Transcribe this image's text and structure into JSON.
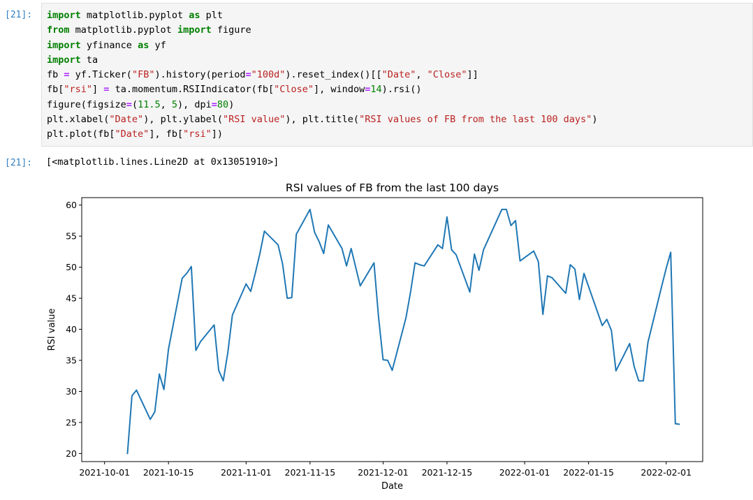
{
  "cells": [
    {
      "input_prompt": "[21]:",
      "output_prompt": "[21]:",
      "output_text": "[<matplotlib.lines.Line2D at 0x13051910>]",
      "code_lines": [
        [
          [
            "kw",
            "import"
          ],
          [
            "t",
            " matplotlib.pyplot "
          ],
          [
            "kw",
            "as"
          ],
          [
            "t",
            " plt"
          ]
        ],
        [
          [
            "kw",
            "from"
          ],
          [
            "t",
            " matplotlib.pyplot "
          ],
          [
            "kw",
            "import"
          ],
          [
            "t",
            " figure"
          ]
        ],
        [
          [
            "kw",
            "import"
          ],
          [
            "t",
            " yfinance "
          ],
          [
            "kw",
            "as"
          ],
          [
            "t",
            " yf"
          ]
        ],
        [
          [
            "kw",
            "import"
          ],
          [
            "t",
            " ta"
          ]
        ],
        [
          [
            "t",
            "fb "
          ],
          [
            "op",
            "="
          ],
          [
            "t",
            " yf.Ticker("
          ],
          [
            "str",
            "\"FB\""
          ],
          [
            "t",
            ").history(period"
          ],
          [
            "op",
            "="
          ],
          [
            "str",
            "\"100d\""
          ],
          [
            "t",
            ").reset_index()[["
          ],
          [
            "str",
            "\"Date\""
          ],
          [
            "t",
            ", "
          ],
          [
            "str",
            "\"Close\""
          ],
          [
            "t",
            "]]"
          ]
        ],
        [
          [
            "t",
            "fb["
          ],
          [
            "str",
            "\"rsi\""
          ],
          [
            "t",
            "] "
          ],
          [
            "op",
            "="
          ],
          [
            "t",
            " ta.momentum.RSIIndicator(fb["
          ],
          [
            "str",
            "\"Close\""
          ],
          [
            "t",
            "], window"
          ],
          [
            "op",
            "="
          ],
          [
            "num",
            "14"
          ],
          [
            "t",
            ").rsi()"
          ]
        ],
        [
          [
            "t",
            "figure(figsize"
          ],
          [
            "op",
            "="
          ],
          [
            "t",
            "("
          ],
          [
            "num",
            "11.5"
          ],
          [
            "t",
            ", "
          ],
          [
            "num",
            "5"
          ],
          [
            "t",
            "), dpi"
          ],
          [
            "op",
            "="
          ],
          [
            "num",
            "80"
          ],
          [
            "t",
            ")"
          ]
        ],
        [
          [
            "t",
            "plt.xlabel("
          ],
          [
            "str",
            "\"Date\""
          ],
          [
            "t",
            "), plt.ylabel("
          ],
          [
            "str",
            "\"RSI value\""
          ],
          [
            "t",
            "), plt.title("
          ],
          [
            "str",
            "\"RSI values of FB from the last 100 days\""
          ],
          [
            "t",
            ")"
          ]
        ],
        [
          [
            "t",
            "plt.plot(fb["
          ],
          [
            "str",
            "\"Date\""
          ],
          [
            "t",
            "], fb["
          ],
          [
            "str",
            "\"rsi\""
          ],
          [
            "t",
            "])"
          ]
        ]
      ]
    }
  ],
  "chart_data": {
    "type": "line",
    "title": "RSI values of FB from the last 100 days",
    "xlabel": "Date",
    "ylabel": "RSI value",
    "x_tick_labels": [
      "2021-10-01",
      "2021-10-15",
      "2021-11-01",
      "2021-11-15",
      "2021-12-01",
      "2021-12-15",
      "2022-01-01",
      "2022-01-15",
      "2022-02-01"
    ],
    "y_ticks": [
      20,
      25,
      30,
      35,
      40,
      45,
      50,
      55,
      60
    ],
    "xlim": [
      "2021-09-26",
      "2022-02-09"
    ],
    "ylim": [
      18.7,
      61.2
    ],
    "grid": false,
    "color": "#1f77b4",
    "series": [
      {
        "x": [
          "2021-10-06",
          "2021-10-07",
          "2021-10-08",
          "2021-10-11",
          "2021-10-12",
          "2021-10-13",
          "2021-10-14",
          "2021-10-15",
          "2021-10-18",
          "2021-10-19",
          "2021-10-20",
          "2021-10-21",
          "2021-10-22",
          "2021-10-25",
          "2021-10-26",
          "2021-10-27",
          "2021-10-28",
          "2021-10-29",
          "2021-11-01",
          "2021-11-02",
          "2021-11-03",
          "2021-11-04",
          "2021-11-05",
          "2021-11-08",
          "2021-11-09",
          "2021-11-10",
          "2021-11-11",
          "2021-11-12",
          "2021-11-15",
          "2021-11-16",
          "2021-11-17",
          "2021-11-18",
          "2021-11-19",
          "2021-11-22",
          "2021-11-23",
          "2021-11-24",
          "2021-11-26",
          "2021-11-29",
          "2021-11-30",
          "2021-12-01",
          "2021-12-02",
          "2021-12-03",
          "2021-12-06",
          "2021-12-07",
          "2021-12-08",
          "2021-12-09",
          "2021-12-10",
          "2021-12-13",
          "2021-12-14",
          "2021-12-15",
          "2021-12-16",
          "2021-12-17",
          "2021-12-20",
          "2021-12-21",
          "2021-12-22",
          "2021-12-23",
          "2021-12-27",
          "2021-12-28",
          "2021-12-29",
          "2021-12-30",
          "2021-12-31",
          "2022-01-03",
          "2022-01-04",
          "2022-01-05",
          "2022-01-06",
          "2022-01-07",
          "2022-01-10",
          "2022-01-11",
          "2022-01-12",
          "2022-01-13",
          "2022-01-14",
          "2022-01-18",
          "2022-01-19",
          "2022-01-20",
          "2022-01-21",
          "2022-01-24",
          "2022-01-25",
          "2022-01-26",
          "2022-01-27",
          "2022-01-28",
          "2022-01-31",
          "2022-02-01",
          "2022-02-02",
          "2022-02-03",
          "2022-02-04"
        ],
        "y": [
          19.9,
          29.3,
          30.2,
          25.5,
          26.7,
          32.8,
          30.3,
          36.8,
          48.2,
          49.0,
          50.1,
          36.6,
          38.0,
          40.7,
          33.4,
          31.7,
          36.3,
          42.3,
          47.3,
          46.1,
          49.0,
          52.1,
          55.8,
          53.6,
          50.5,
          45.0,
          45.1,
          55.3,
          59.3,
          55.6,
          54.1,
          52.2,
          56.8,
          53.0,
          50.2,
          53.0,
          47.0,
          50.7,
          42.0,
          35.1,
          35.0,
          33.4,
          41.8,
          45.9,
          50.7,
          50.4,
          50.2,
          53.6,
          53.0,
          58.1,
          52.8,
          52.0,
          46.0,
          52.1,
          49.5,
          52.8,
          59.3,
          59.3,
          56.7,
          57.5,
          51.0,
          52.6,
          50.9,
          42.4,
          48.6,
          48.3,
          45.8,
          50.4,
          49.7,
          44.8,
          49.0,
          40.6,
          41.6,
          39.8,
          33.3,
          37.7,
          34.0,
          31.7,
          31.7,
          37.9,
          46.9,
          49.8,
          52.4,
          24.8,
          24.7
        ]
      }
    ]
  }
}
